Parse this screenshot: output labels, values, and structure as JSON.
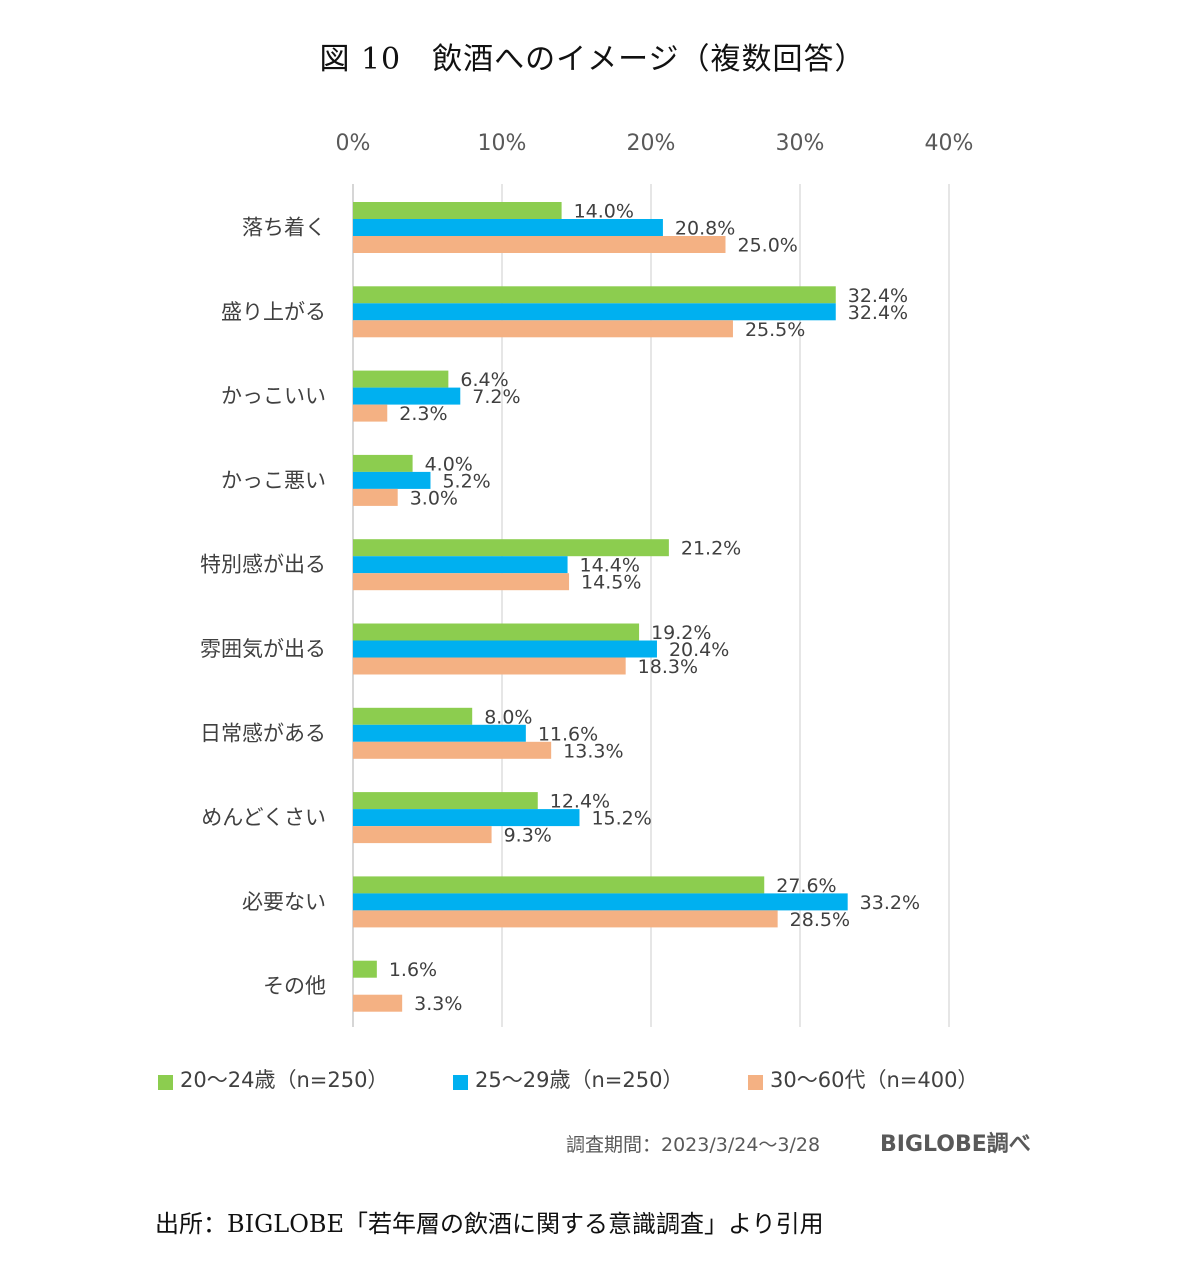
{
  "figure_title": "図 10　飲酒へのイメージ（複数回答）",
  "colors": {
    "s0": "#8ccd4f",
    "s1": "#00b0f0",
    "s2": "#f4b183",
    "grid": "#d9d9d9"
  },
  "chart_data": {
    "type": "bar",
    "orientation": "horizontal",
    "xlim": [
      0,
      40
    ],
    "ticks": [
      "0%",
      "10%",
      "20%",
      "30%",
      "40%"
    ],
    "tick_values": [
      0,
      10,
      20,
      30,
      40
    ],
    "grid": true,
    "legend_position": "bottom",
    "categories": [
      "落ち着く",
      "盛り上がる",
      "かっこいい",
      "かっこ悪い",
      "特別感が出る",
      "雰囲気が出る",
      "日常感がある",
      "めんどくさい",
      "必要ない",
      "その他"
    ],
    "series": [
      {
        "name": "20～24歳（n=250）",
        "values": [
          14.0,
          32.4,
          6.4,
          4.0,
          21.2,
          19.2,
          8.0,
          12.4,
          27.6,
          1.6
        ],
        "labels": [
          "14.0%",
          "32.4%",
          "6.4%",
          "4.0%",
          "21.2%",
          "19.2%",
          "8.0%",
          "12.4%",
          "27.6%",
          "1.6%"
        ]
      },
      {
        "name": "25～29歳（n=250）",
        "values": [
          20.8,
          32.4,
          7.2,
          5.2,
          14.4,
          20.4,
          11.6,
          15.2,
          33.2,
          null
        ],
        "labels": [
          "20.8%",
          "32.4%",
          "7.2%",
          "5.2%",
          "14.4%",
          "20.4%",
          "11.6%",
          "15.2%",
          "33.2%",
          null
        ]
      },
      {
        "name": "30～60代（n=400）",
        "values": [
          25.0,
          25.5,
          2.3,
          3.0,
          14.5,
          18.3,
          13.3,
          9.3,
          28.5,
          3.3
        ],
        "labels": [
          "25.0%",
          "25.5%",
          "2.3%",
          "3.0%",
          "14.5%",
          "18.3%",
          "13.3%",
          "9.3%",
          "28.5%",
          "3.3%"
        ]
      }
    ]
  },
  "legend": {
    "items": [
      {
        "label": "20～24歳（n=250）",
        "color": "#8ccd4f"
      },
      {
        "label": "25～29歳（n=250）",
        "color": "#00b0f0"
      },
      {
        "label": "30～60代（n=400）",
        "color": "#f4b183"
      }
    ]
  },
  "survey_period": "調査期間：2023/3/24～3/28",
  "brand": "BIGLOBE調べ",
  "source": "出所：BIGLOBE「若年層の飲酒に関する意識調査」より引用"
}
